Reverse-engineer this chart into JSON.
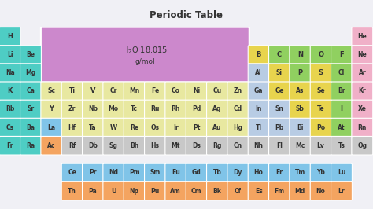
{
  "title": "Periodic Table",
  "bg_color": "#f0f0f5",
  "title_bar_color": "#f0f0f5",
  "table_bg": "#ffffff",
  "colors": {
    "alkali": "#4ecdc4",
    "alkaline": "#4ecdc4",
    "transition": "#e8e8a0",
    "post_transition": "#b8cce4",
    "metalloid_yellow": "#e8d44d",
    "nonmetal_green": "#90d060",
    "halogen_green": "#90d060",
    "noble_pink": "#f0b0c8",
    "lanthanide": "#80c4e8",
    "actinide": "#f4a460",
    "unknown": "#c8c8c8",
    "highlight_box": "#cc88cc",
    "white_bg": "#ffffff"
  },
  "elements": [
    {
      "symbol": "H",
      "row": 0,
      "col": 0,
      "color": "#4ecdc4"
    },
    {
      "symbol": "He",
      "row": 0,
      "col": 17,
      "color": "#f0b0c8"
    },
    {
      "symbol": "Li",
      "row": 1,
      "col": 0,
      "color": "#4ecdc4"
    },
    {
      "symbol": "Be",
      "row": 1,
      "col": 1,
      "color": "#4ecdc4"
    },
    {
      "symbol": "B",
      "row": 1,
      "col": 12,
      "color": "#e8d44d"
    },
    {
      "symbol": "C",
      "row": 1,
      "col": 13,
      "color": "#90d060"
    },
    {
      "symbol": "N",
      "row": 1,
      "col": 14,
      "color": "#90d060"
    },
    {
      "symbol": "O",
      "row": 1,
      "col": 15,
      "color": "#90d060"
    },
    {
      "symbol": "F",
      "row": 1,
      "col": 16,
      "color": "#90d060"
    },
    {
      "symbol": "Ne",
      "row": 1,
      "col": 17,
      "color": "#f0b0c8"
    },
    {
      "symbol": "Na",
      "row": 2,
      "col": 0,
      "color": "#4ecdc4"
    },
    {
      "symbol": "Mg",
      "row": 2,
      "col": 1,
      "color": "#4ecdc4"
    },
    {
      "symbol": "Al",
      "row": 2,
      "col": 12,
      "color": "#b8cce4"
    },
    {
      "symbol": "Si",
      "row": 2,
      "col": 13,
      "color": "#e8d44d"
    },
    {
      "symbol": "P",
      "row": 2,
      "col": 14,
      "color": "#90d060"
    },
    {
      "symbol": "S",
      "row": 2,
      "col": 15,
      "color": "#e8d44d"
    },
    {
      "symbol": "Cl",
      "row": 2,
      "col": 16,
      "color": "#90d060"
    },
    {
      "symbol": "Ar",
      "row": 2,
      "col": 17,
      "color": "#f0b0c8"
    },
    {
      "symbol": "K",
      "row": 3,
      "col": 0,
      "color": "#4ecdc4"
    },
    {
      "symbol": "Ca",
      "row": 3,
      "col": 1,
      "color": "#4ecdc4"
    },
    {
      "symbol": "Sc",
      "row": 3,
      "col": 2,
      "color": "#e8e8a0"
    },
    {
      "symbol": "Ti",
      "row": 3,
      "col": 3,
      "color": "#e8e8a0"
    },
    {
      "symbol": "V",
      "row": 3,
      "col": 4,
      "color": "#e8e8a0"
    },
    {
      "symbol": "Cr",
      "row": 3,
      "col": 5,
      "color": "#e8e8a0"
    },
    {
      "symbol": "Mn",
      "row": 3,
      "col": 6,
      "color": "#e8e8a0"
    },
    {
      "symbol": "Fe",
      "row": 3,
      "col": 7,
      "color": "#e8e8a0"
    },
    {
      "symbol": "Co",
      "row": 3,
      "col": 8,
      "color": "#e8e8a0"
    },
    {
      "symbol": "Ni",
      "row": 3,
      "col": 9,
      "color": "#e8e8a0"
    },
    {
      "symbol": "Cu",
      "row": 3,
      "col": 10,
      "color": "#e8e8a0"
    },
    {
      "symbol": "Zn",
      "row": 3,
      "col": 11,
      "color": "#e8e8a0"
    },
    {
      "symbol": "Ga",
      "row": 3,
      "col": 12,
      "color": "#b8cce4"
    },
    {
      "symbol": "Ge",
      "row": 3,
      "col": 13,
      "color": "#e8d44d"
    },
    {
      "symbol": "As",
      "row": 3,
      "col": 14,
      "color": "#e8d44d"
    },
    {
      "symbol": "Se",
      "row": 3,
      "col": 15,
      "color": "#e8d44d"
    },
    {
      "symbol": "Br",
      "row": 3,
      "col": 16,
      "color": "#90d060"
    },
    {
      "symbol": "Kr",
      "row": 3,
      "col": 17,
      "color": "#f0b0c8"
    },
    {
      "symbol": "Rb",
      "row": 4,
      "col": 0,
      "color": "#4ecdc4"
    },
    {
      "symbol": "Sr",
      "row": 4,
      "col": 1,
      "color": "#4ecdc4"
    },
    {
      "symbol": "Y",
      "row": 4,
      "col": 2,
      "color": "#e8e8a0"
    },
    {
      "symbol": "Zr",
      "row": 4,
      "col": 3,
      "color": "#e8e8a0"
    },
    {
      "symbol": "Nb",
      "row": 4,
      "col": 4,
      "color": "#e8e8a0"
    },
    {
      "symbol": "Mo",
      "row": 4,
      "col": 5,
      "color": "#e8e8a0"
    },
    {
      "symbol": "Tc",
      "row": 4,
      "col": 6,
      "color": "#e8e8a0"
    },
    {
      "symbol": "Ru",
      "row": 4,
      "col": 7,
      "color": "#e8e8a0"
    },
    {
      "symbol": "Rh",
      "row": 4,
      "col": 8,
      "color": "#e8e8a0"
    },
    {
      "symbol": "Pd",
      "row": 4,
      "col": 9,
      "color": "#e8e8a0"
    },
    {
      "symbol": "Ag",
      "row": 4,
      "col": 10,
      "color": "#e8e8a0"
    },
    {
      "symbol": "Cd",
      "row": 4,
      "col": 11,
      "color": "#e8e8a0"
    },
    {
      "symbol": "In",
      "row": 4,
      "col": 12,
      "color": "#b8cce4"
    },
    {
      "symbol": "Sn",
      "row": 4,
      "col": 13,
      "color": "#b8cce4"
    },
    {
      "symbol": "Sb",
      "row": 4,
      "col": 14,
      "color": "#e8d44d"
    },
    {
      "symbol": "Te",
      "row": 4,
      "col": 15,
      "color": "#e8d44d"
    },
    {
      "symbol": "I",
      "row": 4,
      "col": 16,
      "color": "#90d060"
    },
    {
      "symbol": "Xe",
      "row": 4,
      "col": 17,
      "color": "#f0b0c8"
    },
    {
      "symbol": "Cs",
      "row": 5,
      "col": 0,
      "color": "#4ecdc4"
    },
    {
      "symbol": "Ba",
      "row": 5,
      "col": 1,
      "color": "#4ecdc4"
    },
    {
      "symbol": "La",
      "row": 5,
      "col": 2,
      "color": "#80c4e8"
    },
    {
      "symbol": "Hf",
      "row": 5,
      "col": 3,
      "color": "#e8e8a0"
    },
    {
      "symbol": "Ta",
      "row": 5,
      "col": 4,
      "color": "#e8e8a0"
    },
    {
      "symbol": "W",
      "row": 5,
      "col": 5,
      "color": "#e8e8a0"
    },
    {
      "symbol": "Re",
      "row": 5,
      "col": 6,
      "color": "#e8e8a0"
    },
    {
      "symbol": "Os",
      "row": 5,
      "col": 7,
      "color": "#e8e8a0"
    },
    {
      "symbol": "Ir",
      "row": 5,
      "col": 8,
      "color": "#e8e8a0"
    },
    {
      "symbol": "Pt",
      "row": 5,
      "col": 9,
      "color": "#e8e8a0"
    },
    {
      "symbol": "Au",
      "row": 5,
      "col": 10,
      "color": "#e8e8a0"
    },
    {
      "symbol": "Hg",
      "row": 5,
      "col": 11,
      "color": "#e8e8a0"
    },
    {
      "symbol": "Tl",
      "row": 5,
      "col": 12,
      "color": "#b8cce4"
    },
    {
      "symbol": "Pb",
      "row": 5,
      "col": 13,
      "color": "#b8cce4"
    },
    {
      "symbol": "Bi",
      "row": 5,
      "col": 14,
      "color": "#b8cce4"
    },
    {
      "symbol": "Po",
      "row": 5,
      "col": 15,
      "color": "#e8d44d"
    },
    {
      "symbol": "At",
      "row": 5,
      "col": 16,
      "color": "#90d060"
    },
    {
      "symbol": "Rn",
      "row": 5,
      "col": 17,
      "color": "#f0b0c8"
    },
    {
      "symbol": "Fr",
      "row": 6,
      "col": 0,
      "color": "#4ecdc4"
    },
    {
      "symbol": "Ra",
      "row": 6,
      "col": 1,
      "color": "#4ecdc4"
    },
    {
      "symbol": "Ac",
      "row": 6,
      "col": 2,
      "color": "#f4a460"
    },
    {
      "symbol": "Rf",
      "row": 6,
      "col": 3,
      "color": "#c8c8c8"
    },
    {
      "symbol": "Db",
      "row": 6,
      "col": 4,
      "color": "#c8c8c8"
    },
    {
      "symbol": "Sg",
      "row": 6,
      "col": 5,
      "color": "#c8c8c8"
    },
    {
      "symbol": "Bh",
      "row": 6,
      "col": 6,
      "color": "#c8c8c8"
    },
    {
      "symbol": "Hs",
      "row": 6,
      "col": 7,
      "color": "#c8c8c8"
    },
    {
      "symbol": "Mt",
      "row": 6,
      "col": 8,
      "color": "#c8c8c8"
    },
    {
      "symbol": "Ds",
      "row": 6,
      "col": 9,
      "color": "#c8c8c8"
    },
    {
      "symbol": "Rg",
      "row": 6,
      "col": 10,
      "color": "#c8c8c8"
    },
    {
      "symbol": "Cn",
      "row": 6,
      "col": 11,
      "color": "#c8c8c8"
    },
    {
      "symbol": "Nh",
      "row": 6,
      "col": 12,
      "color": "#c8c8c8"
    },
    {
      "symbol": "Fl",
      "row": 6,
      "col": 13,
      "color": "#c8c8c8"
    },
    {
      "symbol": "Mc",
      "row": 6,
      "col": 14,
      "color": "#c8c8c8"
    },
    {
      "symbol": "Lv",
      "row": 6,
      "col": 15,
      "color": "#c8c8c8"
    },
    {
      "symbol": "Ts",
      "row": 6,
      "col": 16,
      "color": "#c8c8c8"
    },
    {
      "symbol": "Og",
      "row": 6,
      "col": 17,
      "color": "#c8c8c8"
    },
    {
      "symbol": "Ce",
      "row": 8,
      "col": 3,
      "color": "#80c4e8"
    },
    {
      "symbol": "Pr",
      "row": 8,
      "col": 4,
      "color": "#80c4e8"
    },
    {
      "symbol": "Nd",
      "row": 8,
      "col": 5,
      "color": "#80c4e8"
    },
    {
      "symbol": "Pm",
      "row": 8,
      "col": 6,
      "color": "#80c4e8"
    },
    {
      "symbol": "Sm",
      "row": 8,
      "col": 7,
      "color": "#80c4e8"
    },
    {
      "symbol": "Eu",
      "row": 8,
      "col": 8,
      "color": "#80c4e8"
    },
    {
      "symbol": "Gd",
      "row": 8,
      "col": 9,
      "color": "#80c4e8"
    },
    {
      "symbol": "Tb",
      "row": 8,
      "col": 10,
      "color": "#80c4e8"
    },
    {
      "symbol": "Dy",
      "row": 8,
      "col": 11,
      "color": "#80c4e8"
    },
    {
      "symbol": "Ho",
      "row": 8,
      "col": 12,
      "color": "#80c4e8"
    },
    {
      "symbol": "Er",
      "row": 8,
      "col": 13,
      "color": "#80c4e8"
    },
    {
      "symbol": "Tm",
      "row": 8,
      "col": 14,
      "color": "#80c4e8"
    },
    {
      "symbol": "Yb",
      "row": 8,
      "col": 15,
      "color": "#80c4e8"
    },
    {
      "symbol": "Lu",
      "row": 8,
      "col": 16,
      "color": "#80c4e8"
    },
    {
      "symbol": "Th",
      "row": 9,
      "col": 3,
      "color": "#f4a460"
    },
    {
      "symbol": "Pa",
      "row": 9,
      "col": 4,
      "color": "#f4a460"
    },
    {
      "symbol": "U",
      "row": 9,
      "col": 5,
      "color": "#f4a460"
    },
    {
      "symbol": "Np",
      "row": 9,
      "col": 6,
      "color": "#f4a460"
    },
    {
      "symbol": "Pu",
      "row": 9,
      "col": 7,
      "color": "#f4a460"
    },
    {
      "symbol": "Am",
      "row": 9,
      "col": 8,
      "color": "#f4a460"
    },
    {
      "symbol": "Cm",
      "row": 9,
      "col": 9,
      "color": "#f4a460"
    },
    {
      "symbol": "Bk",
      "row": 9,
      "col": 10,
      "color": "#f4a460"
    },
    {
      "symbol": "Cf",
      "row": 9,
      "col": 11,
      "color": "#f4a460"
    },
    {
      "symbol": "Es",
      "row": 9,
      "col": 12,
      "color": "#f4a460"
    },
    {
      "symbol": "Fm",
      "row": 9,
      "col": 13,
      "color": "#f4a460"
    },
    {
      "symbol": "Md",
      "row": 9,
      "col": 14,
      "color": "#f4a460"
    },
    {
      "symbol": "No",
      "row": 9,
      "col": 15,
      "color": "#f4a460"
    },
    {
      "symbol": "Lr",
      "row": 9,
      "col": 16,
      "color": "#f4a460"
    }
  ],
  "figsize": [
    4.74,
    2.66
  ],
  "dpi": 100
}
